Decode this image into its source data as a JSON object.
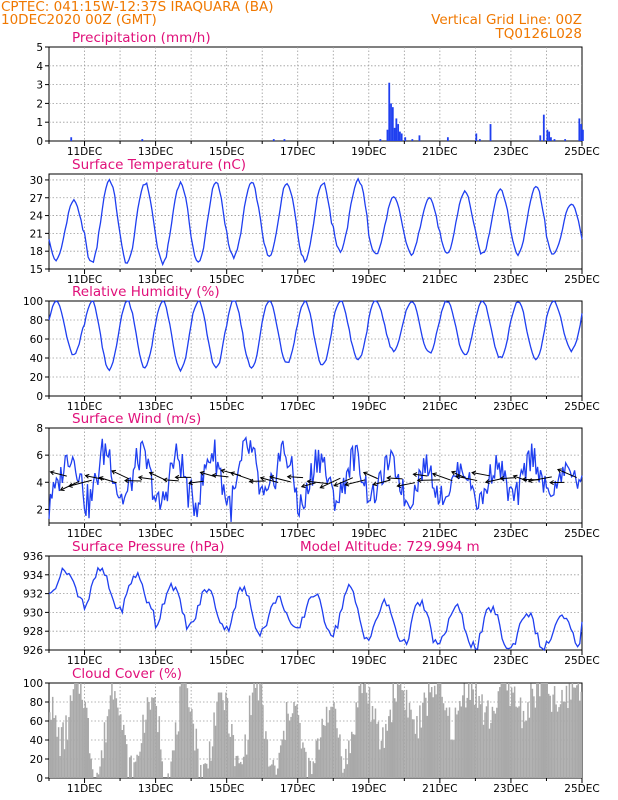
{
  "header": {
    "line1_left": "CPTEC:   041:15W-12:37S   IRAQUARA (BA)",
    "line2_left": "10DEC2020 00Z (GMT)",
    "line2_right": "Vertical Grid Line: 00Z",
    "line3_right": "TQ0126L028"
  },
  "colors": {
    "header": "#f07800",
    "title": "#e0107a",
    "series": "#1f3ff0",
    "cloud": "#a9a9a9",
    "wind_arrow": "#000000"
  },
  "chart_data": [
    {
      "id": "precip",
      "type": "bar",
      "title": "Precipitation (mm/h)",
      "ylim": [
        0,
        5
      ],
      "yticks": [
        0,
        1,
        2,
        3,
        4,
        5
      ],
      "xticklabels": [
        "11DEC",
        "13DEC",
        "15DEC",
        "17DEC",
        "19DEC",
        "21DEC",
        "23DEC",
        "25DEC"
      ],
      "grid": true,
      "x_day": [
        0.6,
        2.6,
        6.3,
        6.6,
        9.3,
        9.5,
        9.55,
        9.6,
        9.65,
        9.7,
        9.75,
        9.8,
        9.85,
        9.9,
        10.0,
        10.2,
        10.4,
        11.2,
        12.0,
        12.1,
        12.4,
        13.8,
        13.9,
        14.0,
        14.05,
        14.1,
        14.2,
        14.5,
        14.9,
        14.95,
        15.0
      ],
      "values": [
        0.2,
        0.1,
        0.1,
        0.1,
        0.1,
        0.6,
        3.1,
        2.0,
        1.8,
        0.7,
        1.2,
        0.9,
        0.5,
        0.4,
        0.2,
        0.1,
        0.3,
        0.2,
        0.4,
        0.1,
        0.9,
        0.3,
        1.4,
        0.6,
        0.5,
        0.2,
        0.1,
        0.1,
        1.2,
        0.9,
        0.6
      ]
    },
    {
      "id": "temp",
      "type": "line",
      "title": "Surface Temperature (nC)",
      "ylim": [
        15,
        31
      ],
      "yticks": [
        15,
        18,
        21,
        24,
        27,
        30
      ],
      "xticklabels": [
        "11DEC",
        "13DEC",
        "15DEC",
        "17DEC",
        "19DEC",
        "21DEC",
        "23DEC",
        "25DEC"
      ],
      "grid": true,
      "daily_max": [
        26.5,
        30,
        29.5,
        29.5,
        29.5,
        29.5,
        29.5,
        29.5,
        30,
        27,
        27,
        28,
        28.5,
        29,
        26
      ],
      "daily_min": [
        16.5,
        16,
        16,
        16,
        16,
        17,
        17,
        16.5,
        18,
        17.5,
        17.5,
        17.5,
        17.5,
        17.5,
        17.5
      ],
      "start_value": 20,
      "end_value": 20
    },
    {
      "id": "rh",
      "type": "line",
      "title": "Relative Humidity (%)",
      "ylim": [
        0,
        100
      ],
      "yticks": [
        0,
        20,
        40,
        60,
        80,
        100
      ],
      "xticklabels": [
        "11DEC",
        "13DEC",
        "15DEC",
        "17DEC",
        "19DEC",
        "21DEC",
        "23DEC",
        "25DEC"
      ],
      "grid": true,
      "daily_max": [
        100,
        100,
        100,
        100,
        100,
        100,
        100,
        100,
        100,
        100,
        100,
        100,
        100,
        100,
        100
      ],
      "daily_min": [
        43,
        28,
        30,
        27,
        30,
        30,
        35,
        32,
        38,
        48,
        45,
        43,
        40,
        38,
        48
      ],
      "start_value": 80,
      "end_value": 87
    },
    {
      "id": "wind",
      "type": "line",
      "title": "Surface Wind (m/s)",
      "ylim": [
        1,
        8
      ],
      "yticks": [
        2,
        4,
        6,
        8
      ],
      "xticklabels": [
        "11DEC",
        "13DEC",
        "15DEC",
        "17DEC",
        "19DEC",
        "21DEC",
        "23DEC",
        "25DEC"
      ],
      "grid": true,
      "daily_max": [
        6.0,
        6.4,
        6.0,
        5.8,
        6.2,
        6.5,
        6.3,
        6.0,
        5.9,
        5.5,
        5.2,
        5.0,
        5.3,
        6.0,
        5.0
      ],
      "daily_min": [
        3.2,
        2.5,
        2.8,
        2.2,
        2.5,
        2.4,
        2.6,
        2.2,
        2.8,
        3.0,
        2.6,
        3.0,
        2.6,
        2.8,
        3.2
      ],
      "start_value": 1.3,
      "end_value": 4.5,
      "arrows_note": "wind vectors along y≈4.2"
    },
    {
      "id": "pres",
      "type": "line",
      "title": "Surface Pressure (hPa)",
      "subtitle": "Model Altitude: 729.994 m",
      "ylim": [
        926,
        936
      ],
      "yticks": [
        926,
        928,
        930,
        932,
        934,
        936
      ],
      "xticklabels": [
        "11DEC",
        "13DEC",
        "15DEC",
        "17DEC",
        "19DEC",
        "21DEC",
        "23DEC",
        "25DEC"
      ],
      "grid": true,
      "daily_max": [
        934.5,
        934.5,
        934.0,
        933.0,
        932.5,
        932.5,
        931.5,
        932.0,
        932.5,
        931.0,
        931.0,
        930.5,
        930.5,
        930.0,
        929.5
      ],
      "daily_min": [
        931.5,
        930.5,
        930.0,
        928.5,
        928.5,
        928.0,
        928.0,
        928.0,
        927.5,
        927.0,
        926.5,
        926.5,
        926.0,
        926.0,
        926.5
      ],
      "start_value": 932.0,
      "end_value": 929.0
    },
    {
      "id": "cloud",
      "type": "bar",
      "title": "Cloud Cover (%)",
      "ylim": [
        0,
        100
      ],
      "yticks": [
        0,
        20,
        40,
        60,
        80,
        100
      ],
      "xticklabels": [
        "11DEC",
        "13DEC",
        "15DEC",
        "17DEC",
        "19DEC",
        "21DEC",
        "23DEC",
        "25DEC"
      ],
      "grid": true,
      "daily_max": [
        100,
        100,
        85,
        100,
        90,
        100,
        80,
        75,
        100,
        100,
        100,
        100,
        100,
        100,
        100
      ],
      "daily_min": [
        40,
        5,
        5,
        5,
        5,
        10,
        5,
        5,
        20,
        40,
        55,
        55,
        65,
        70,
        75
      ]
    }
  ]
}
